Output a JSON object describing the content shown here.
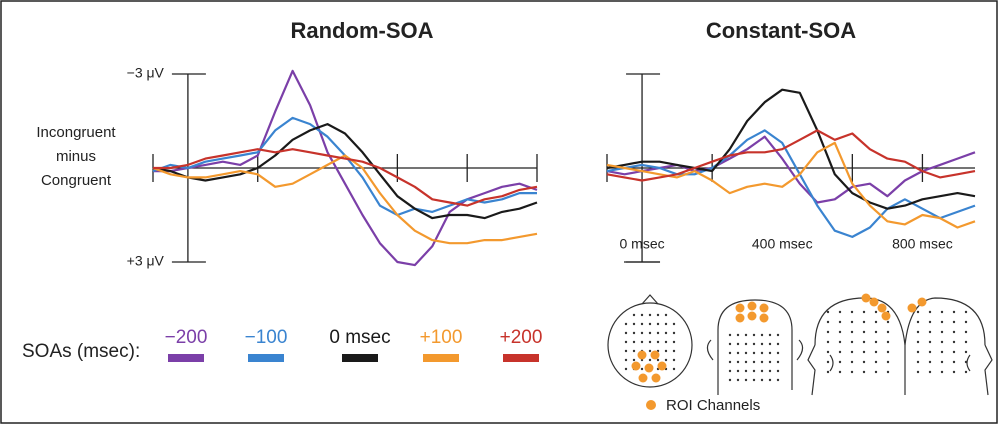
{
  "chart_data": [
    {
      "type": "line",
      "title": "Random-SOA",
      "y_label": [
        "Incongruent",
        "minus",
        "Congruent"
      ],
      "legend_title": "SOAs (msec):",
      "x": [
        -100,
        -50,
        0,
        50,
        100,
        150,
        200,
        250,
        300,
        350,
        400,
        450,
        500,
        550,
        600,
        650,
        700,
        750,
        800,
        850,
        900,
        950,
        1000
      ],
      "xlim": [
        -100,
        1000
      ],
      "xticks_minor": [
        -100,
        200,
        600,
        800,
        1000
      ],
      "ylim": [
        -3,
        3
      ],
      "y_inverted": true,
      "yticks": [
        {
          "value": -3,
          "label": "−3 μV"
        },
        {
          "value": 3,
          "label": "+3 μV"
        }
      ],
      "series": [
        {
          "name": "−200",
          "color": "#7b3fa8",
          "values": [
            0.1,
            0.1,
            0,
            -0.1,
            -0.2,
            -0.1,
            -0.4,
            -1.8,
            -3.1,
            -2.0,
            -0.5,
            0.5,
            1.5,
            2.4,
            3.0,
            3.1,
            2.5,
            1.4,
            1.0,
            0.8,
            0.6,
            0.5,
            0.7
          ]
        },
        {
          "name": "−100",
          "color": "#3a84d0",
          "values": [
            0.1,
            -0.1,
            0,
            -0.2,
            -0.3,
            -0.4,
            -0.5,
            -1.2,
            -1.6,
            -1.4,
            -1.0,
            -0.4,
            0.3,
            1.2,
            1.5,
            1.3,
            1.4,
            1.2,
            1.0,
            1.1,
            1.0,
            0.8,
            0.8
          ]
        },
        {
          "name": "0 msec",
          "color": "#1a1a1a",
          "values": [
            0,
            0.1,
            0.3,
            0.4,
            0.3,
            0.2,
            0,
            -0.4,
            -0.9,
            -1.2,
            -1.4,
            -1.1,
            -0.5,
            0.2,
            0.9,
            1.3,
            1.6,
            1.5,
            1.5,
            1.6,
            1.4,
            1.3,
            1.1
          ]
        },
        {
          "name": "+100",
          "color": "#f3992e",
          "values": [
            0,
            0.2,
            0.3,
            0.3,
            0.2,
            0.1,
            0.2,
            0.6,
            0.5,
            0.2,
            -0.1,
            -0.4,
            0,
            0.8,
            1.5,
            2.0,
            2.3,
            2.4,
            2.4,
            2.3,
            2.3,
            2.2,
            2.1
          ]
        },
        {
          "name": "+200",
          "color": "#c7332b",
          "values": [
            0,
            0,
            -0.1,
            -0.3,
            -0.4,
            -0.5,
            -0.6,
            -0.5,
            -0.6,
            -0.5,
            -0.4,
            -0.3,
            -0.2,
            0,
            0.3,
            0.6,
            1.0,
            1.1,
            1.2,
            1.0,
            0.9,
            0.7,
            0.6
          ]
        }
      ]
    },
    {
      "type": "line",
      "title": "Constant-SOA",
      "roi_label": "ROI Channels",
      "x": [
        -100,
        -50,
        0,
        50,
        100,
        150,
        200,
        250,
        300,
        350,
        400,
        450,
        500,
        550,
        600,
        650,
        700,
        750,
        800,
        850,
        900,
        950
      ],
      "xlim": [
        -100,
        950
      ],
      "xticks_minor": [
        -100,
        200,
        600,
        800
      ],
      "xticks": [
        {
          "value": 0,
          "label": "0 msec"
        },
        {
          "value": 400,
          "label": "400 msec"
        },
        {
          "value": 800,
          "label": "800 msec"
        }
      ],
      "ylim": [
        -3,
        3
      ],
      "y_inverted": true,
      "yticks": [
        -3,
        3
      ],
      "series": [
        {
          "color": "#7b3fa8",
          "values": [
            0.1,
            0.2,
            0.1,
            0,
            -0.1,
            0.1,
            0,
            -0.3,
            -0.6,
            -1.0,
            -0.3,
            0.5,
            1.1,
            1.0,
            0.6,
            0.5,
            0.9,
            0.4,
            0.1,
            -0.1,
            -0.3,
            -0.5
          ]
        },
        {
          "color": "#3a84d0",
          "values": [
            0.1,
            0,
            -0.1,
            0,
            0.2,
            0.2,
            0,
            -0.4,
            -0.9,
            -1.2,
            -0.8,
            0.2,
            1.2,
            2.0,
            2.2,
            1.9,
            1.3,
            1.0,
            1.3,
            1.6,
            1.4,
            1.2
          ]
        },
        {
          "color": "#1a1a1a",
          "values": [
            0,
            -0.1,
            -0.2,
            -0.2,
            -0.1,
            0,
            0.1,
            -0.6,
            -1.5,
            -2.1,
            -2.5,
            -2.4,
            -1.2,
            0.2,
            0.8,
            1.1,
            1.3,
            1.2,
            1.0,
            0.9,
            0.8,
            0.9
          ]
        },
        {
          "color": "#f3992e",
          "values": [
            -0.1,
            0,
            0.1,
            0.2,
            0.3,
            0.1,
            0.4,
            0.8,
            0.6,
            0.5,
            0.6,
            0.2,
            -0.5,
            -0.8,
            0.5,
            1.2,
            1.7,
            1.8,
            1.5,
            1.6,
            1.9,
            1.7
          ]
        },
        {
          "color": "#c7332b",
          "values": [
            0.2,
            0.3,
            0.4,
            0.3,
            0.2,
            0,
            -0.2,
            -0.4,
            -0.5,
            -0.5,
            -0.6,
            -0.9,
            -1.2,
            -0.9,
            -1.1,
            -0.6,
            -0.3,
            -0.2,
            0.1,
            0.3,
            0.2,
            0.1
          ]
        }
      ]
    }
  ]
}
